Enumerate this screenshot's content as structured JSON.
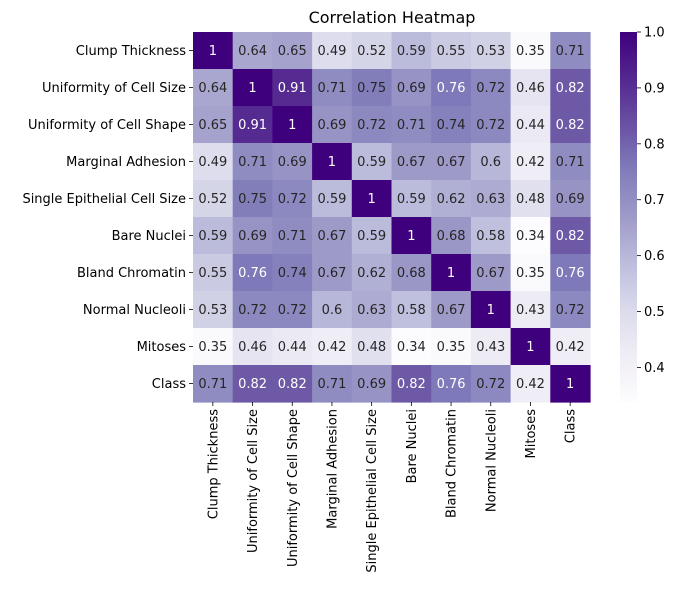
{
  "chart_data": {
    "type": "heatmap",
    "title": "Correlation Heatmap",
    "xlabel": "",
    "ylabel": "",
    "colormap": "Purples",
    "color_low": "#fcfbfd",
    "color_high": "#3f007d",
    "vmin": 0.34,
    "vmax": 1.0,
    "colorbar_ticks": [
      0.4,
      0.5,
      0.6,
      0.7,
      0.8,
      0.9,
      1.0
    ],
    "colorbar_tick_labels": [
      "0.4",
      "0.5",
      "0.6",
      "0.7",
      "0.8",
      "0.9",
      "1.0"
    ],
    "row_labels": [
      "Clump Thickness",
      "Uniformity of Cell Size",
      "Uniformity of Cell Shape",
      "Marginal Adhesion",
      "Single Epithelial Cell Size",
      "Bare Nuclei",
      "Bland Chromatin",
      "Normal Nucleoli",
      "Mitoses",
      "Class"
    ],
    "col_labels": [
      "Clump Thickness",
      "Uniformity of Cell Size",
      "Uniformity of Cell Shape",
      "Marginal Adhesion",
      "Single Epithelial Cell Size",
      "Bare Nuclei",
      "Bland Chromatin",
      "Normal Nucleoli",
      "Mitoses",
      "Class"
    ],
    "values": [
      [
        1,
        0.64,
        0.65,
        0.49,
        0.52,
        0.59,
        0.55,
        0.53,
        0.35,
        0.71
      ],
      [
        0.64,
        1,
        0.91,
        0.71,
        0.75,
        0.69,
        0.76,
        0.72,
        0.46,
        0.82
      ],
      [
        0.65,
        0.91,
        1,
        0.69,
        0.72,
        0.71,
        0.74,
        0.72,
        0.44,
        0.82
      ],
      [
        0.49,
        0.71,
        0.69,
        1,
        0.59,
        0.67,
        0.67,
        0.6,
        0.42,
        0.71
      ],
      [
        0.52,
        0.75,
        0.72,
        0.59,
        1,
        0.59,
        0.62,
        0.63,
        0.48,
        0.69
      ],
      [
        0.59,
        0.69,
        0.71,
        0.67,
        0.59,
        1,
        0.68,
        0.58,
        0.34,
        0.82
      ],
      [
        0.55,
        0.76,
        0.74,
        0.67,
        0.62,
        0.68,
        1,
        0.67,
        0.35,
        0.76
      ],
      [
        0.53,
        0.72,
        0.72,
        0.6,
        0.63,
        0.58,
        0.67,
        1,
        0.43,
        0.72
      ],
      [
        0.35,
        0.46,
        0.44,
        0.42,
        0.48,
        0.34,
        0.35,
        0.43,
        1,
        0.42
      ],
      [
        0.71,
        0.82,
        0.82,
        0.71,
        0.69,
        0.82,
        0.76,
        0.72,
        0.42,
        1
      ]
    ]
  }
}
